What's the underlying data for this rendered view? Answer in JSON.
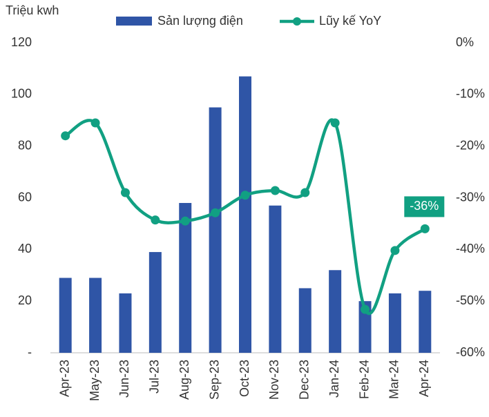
{
  "chart_data": {
    "type": "bar-line",
    "ylabel": "Triệu kwh",
    "categories": [
      "Apr-23",
      "May-23",
      "Jun-23",
      "Jul-23",
      "Aug-23",
      "Sep-23",
      "Oct-23",
      "Nov-23",
      "Dec-23",
      "Jan-24",
      "Feb-24",
      "Mar-24",
      "Apr-24"
    ],
    "series": [
      {
        "name": "Sản lượng điện",
        "type": "bar",
        "color": "#2f55a6",
        "axis": "y",
        "values": [
          29,
          29,
          23,
          39,
          58,
          95,
          107,
          57,
          25,
          32,
          20,
          23,
          24
        ]
      },
      {
        "name": "Lũy kế YoY",
        "type": "line",
        "color": "#11a082",
        "axis": "y2",
        "values": [
          -18,
          -15.5,
          -29,
          -34.3,
          -34.5,
          -32.9,
          -29.5,
          -28.6,
          -29,
          -15.5,
          -51.6,
          -40.2,
          -36
        ],
        "value_labels": [
          null,
          null,
          null,
          null,
          null,
          null,
          null,
          null,
          null,
          null,
          null,
          null,
          "-36%"
        ]
      }
    ],
    "ylim": [
      0,
      120
    ],
    "yticks": [
      {
        "value": 0,
        "label": "-"
      },
      20,
      40,
      60,
      80,
      100,
      120
    ],
    "y2lim": [
      -60,
      0
    ],
    "y2ticks": [
      {
        "value": -60,
        "label": "-60%"
      },
      {
        "value": -50,
        "label": "-50%"
      },
      {
        "value": -40,
        "label": "-40%"
      },
      {
        "value": -30,
        "label": "-30%"
      },
      {
        "value": -20,
        "label": "-20%"
      },
      {
        "value": -10,
        "label": "-10%"
      },
      {
        "value": 0,
        "label": "0%"
      }
    ],
    "legend": "top"
  }
}
